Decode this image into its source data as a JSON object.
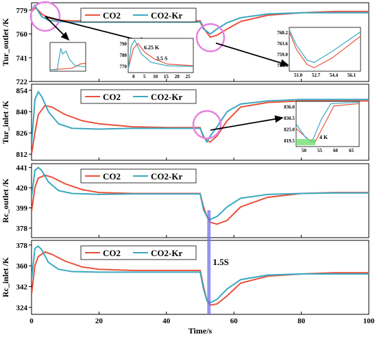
{
  "colors": {
    "co2": "#e8503a",
    "co2kr": "#3aa8c0",
    "highlight_circle": "#e680e0",
    "band": "#7070e8",
    "green_box": "#70e070"
  },
  "chart_data": {
    "type": "line",
    "xlabel": "Time/s",
    "x_ticks": [
      "0",
      "20",
      "40",
      "60",
      "80",
      "100"
    ],
    "xlim": [
      0,
      100
    ],
    "legend": [
      "CO2",
      "CO2-Kr"
    ],
    "annotation": "1.5S",
    "panels": [
      {
        "ylabel": "Tur_outlet /K",
        "ylim": [
          722,
          785
        ],
        "y_ticks": [
          "722",
          "741",
          "760",
          "779"
        ],
        "series": [
          {
            "name": "CO2",
            "x": [
              0,
              0.5,
              1,
              2,
              3,
              5,
              8,
              12,
              20,
              30,
              40,
              50,
              51,
              52,
              53,
              55,
              58,
              62,
              70,
              80,
              90,
              100
            ],
            "y": [
              778,
              779,
              781,
              779,
              776,
              773,
              771,
              770.5,
              770.5,
              770.5,
              770.5,
              770.5,
              765,
              761,
              757.5,
              759,
              764,
              770,
              775,
              777,
              778,
              778
            ]
          },
          {
            "name": "CO2-Kr",
            "x": [
              0,
              0.5,
              1,
              2,
              3,
              5,
              8,
              12,
              20,
              30,
              40,
              50,
              51,
              52,
              53,
              55,
              58,
              62,
              70,
              80,
              90,
              100
            ],
            "y": [
              779,
              781,
              783,
              778,
              774,
              771,
              770,
              769.5,
              769.5,
              769.5,
              769.5,
              769.5,
              764,
              762,
              760,
              764,
              769,
              773,
              776,
              777,
              777,
              777
            ]
          }
        ],
        "insets": [
          {
            "x_ticks": [
              "0",
              "5",
              "10",
              "15",
              "20",
              "25"
            ],
            "y_ticks": [
              "770",
              "780",
              "790"
            ],
            "labels": [
              "6.25 K",
              "3.5 S"
            ]
          },
          {
            "x_ticks": [
              "51.0",
              "52.7",
              "54.4",
              "56.1"
            ],
            "y_ticks": [
              "754.4",
              "759.0",
              "763.6",
              "768.2"
            ]
          }
        ]
      },
      {
        "ylabel": "Tur_inlet /K",
        "ylim": [
          808,
          858
        ],
        "y_ticks": [
          "812",
          "826",
          "840",
          "854"
        ],
        "series": [
          {
            "name": "CO2",
            "x": [
              0,
              1,
              2,
              4,
              6,
              10,
              15,
              20,
              30,
              40,
              50,
              51,
              52,
              53,
              55,
              58,
              62,
              70,
              80,
              90,
              100
            ],
            "y": [
              812,
              826,
              838,
              844,
              843,
              838,
              834,
              832,
              830,
              829.5,
              829.5,
              823,
              821,
              820,
              824,
              834,
              843,
              846,
              847,
              847,
              847
            ]
          },
          {
            "name": "CO2-Kr",
            "x": [
              0,
              1,
              2,
              3,
              5,
              8,
              12,
              20,
              30,
              40,
              50,
              51,
              52,
              53,
              55,
              58,
              62,
              70,
              80,
              90,
              100
            ],
            "y": [
              818,
              848,
              853,
              850,
              840,
              832,
              829,
              828.5,
              829,
              829,
              829,
              824,
              820,
              824,
              830,
              840,
              845,
              847,
              848,
              848,
              848
            ]
          }
        ],
        "insets": [
          {
            "x_ticks": [
              "50",
              "55",
              "60",
              "65"
            ],
            "y_ticks": [
              "819.5",
              "825.0",
              "830.5",
              "836.0"
            ],
            "labels": [
              "4 K"
            ]
          }
        ]
      },
      {
        "ylabel": "Rc_outlet /K",
        "ylim": [
          368,
          445
        ],
        "y_ticks": [
          "378",
          "399",
          "420",
          "441"
        ],
        "series": [
          {
            "name": "CO2",
            "x": [
              0,
              1,
              2,
              4,
              6,
              10,
              15,
              20,
              30,
              40,
              50,
              51,
              52,
              53,
              55,
              58,
              62,
              70,
              80,
              90,
              100
            ],
            "y": [
              395,
              420,
              430,
              433,
              431,
              424,
              418,
              415,
              414,
              414,
              414,
              400,
              390,
              384,
              382,
              386,
              400,
              410,
              414,
              415,
              415
            ]
          },
          {
            "name": "CO2-Kr",
            "x": [
              0,
              1,
              2,
              3,
              5,
              8,
              12,
              20,
              30,
              40,
              50,
              51,
              52,
              53,
              55,
              58,
              62,
              70,
              80,
              90,
              100
            ],
            "y": [
              410,
              438,
              441,
              438,
              426,
              417,
              414,
              413,
              413.5,
              413.5,
              413.5,
              397,
              390,
              387,
              390,
              400,
              409,
              413,
              414,
              414.5,
              414.5
            ]
          }
        ]
      },
      {
        "ylabel": "Rc_inlet /K",
        "ylim": [
          318,
          382
        ],
        "y_ticks": [
          "324",
          "342",
          "360",
          "378"
        ],
        "series": [
          {
            "name": "CO2",
            "x": [
              0,
              1,
              2,
              4,
              6,
              10,
              15,
              20,
              30,
              40,
              50,
              51,
              52,
              53,
              55,
              58,
              62,
              70,
              80,
              90,
              100
            ],
            "y": [
              335,
              360,
              368,
              372,
              370,
              364,
              359,
              357,
              356,
              356,
              356,
              342,
              330,
              326,
              327,
              334,
              345,
              351,
              353,
              354,
              354
            ]
          },
          {
            "name": "CO2-Kr",
            "x": [
              0,
              1,
              2,
              3,
              5,
              8,
              12,
              20,
              30,
              40,
              50,
              51,
              52,
              53,
              55,
              58,
              62,
              70,
              80,
              90,
              100
            ],
            "y": [
              348,
              375,
              377,
              374,
              363,
              357,
              355,
              354.5,
              354.5,
              354.5,
              354.5,
              340,
              330,
              328,
              331,
              340,
              348,
              352,
              353,
              353,
              353
            ]
          }
        ]
      }
    ]
  }
}
